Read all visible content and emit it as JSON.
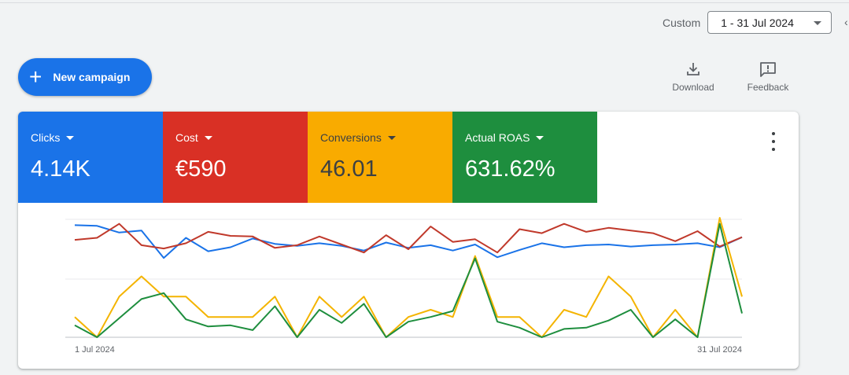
{
  "date_range": {
    "label": "Custom",
    "value": "1 - 31 Jul 2024"
  },
  "new_campaign": {
    "label": "New campaign"
  },
  "toolbar": {
    "download_label": "Download",
    "feedback_label": "Feedback"
  },
  "scorecards": [
    {
      "name": "Clicks",
      "value": "4.14K",
      "color": "#1a73e8"
    },
    {
      "name": "Cost",
      "value": "€590",
      "color": "#d93025"
    },
    {
      "name": "Conversions",
      "value": "46.01",
      "color": "#f9ab00"
    },
    {
      "name": "Actual ROAS",
      "value": "631.62%",
      "color": "#1e8e3e"
    }
  ],
  "chart_data": {
    "type": "line",
    "x_start_label": "1 Jul 2024",
    "x_end_label": "31 Jul 2024",
    "grid": true,
    "series": [
      {
        "name": "Clicks",
        "color": "#1a73e8",
        "values": [
          0.96,
          0.95,
          0.85,
          0.88,
          0.47,
          0.77,
          0.57,
          0.63,
          0.76,
          0.68,
          0.65,
          0.69,
          0.65,
          0.58,
          0.7,
          0.62,
          0.66,
          0.58,
          0.67,
          0.48,
          0.59,
          0.69,
          0.63,
          0.66,
          0.67,
          0.64,
          0.66,
          0.67,
          0.69,
          0.63,
          0.78
        ]
      },
      {
        "name": "Cost",
        "color": "#c0392b",
        "values": [
          0.74,
          0.77,
          0.98,
          0.66,
          0.61,
          0.69,
          0.86,
          0.8,
          0.79,
          0.62,
          0.66,
          0.79,
          0.67,
          0.55,
          0.81,
          0.6,
          0.94,
          0.71,
          0.75,
          0.55,
          0.9,
          0.84,
          0.98,
          0.86,
          0.92,
          0.88,
          0.84,
          0.72,
          0.87,
          0.64,
          0.78
        ]
      },
      {
        "name": "Conversions",
        "color": "#f4b400",
        "values": [
          0.17,
          0.0,
          0.34,
          0.51,
          0.34,
          0.34,
          0.17,
          0.17,
          0.17,
          0.34,
          0.0,
          0.34,
          0.17,
          0.34,
          0.0,
          0.17,
          0.23,
          0.17,
          0.68,
          0.17,
          0.17,
          0.0,
          0.23,
          0.17,
          0.51,
          0.34,
          0.0,
          0.23,
          0.0,
          1.0,
          0.34
        ]
      },
      {
        "name": "Actual ROAS",
        "color": "#1e8e3e",
        "values": [
          0.1,
          0.0,
          0.16,
          0.32,
          0.37,
          0.15,
          0.09,
          0.1,
          0.06,
          0.26,
          0.0,
          0.23,
          0.12,
          0.28,
          0.0,
          0.13,
          0.17,
          0.22,
          0.66,
          0.13,
          0.08,
          0.0,
          0.07,
          0.08,
          0.14,
          0.23,
          0.0,
          0.15,
          0.0,
          0.95,
          0.2
        ]
      }
    ]
  }
}
